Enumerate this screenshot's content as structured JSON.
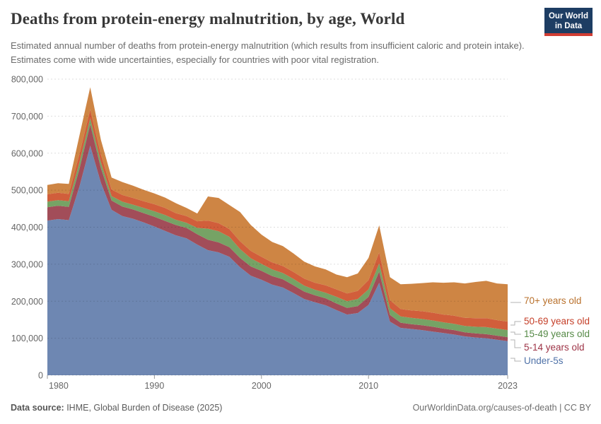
{
  "header": {
    "title": "Deaths from protein-energy malnutrition, by age, World",
    "subtitle": "Estimated annual number of deaths from protein-energy malnutrition (which results from insufficient caloric and protein intake). Estimates come with wide uncertainties, especially for countries with poor vital registration.",
    "logo": {
      "line1": "Our World",
      "line2": "in Data",
      "bg_color": "#1d3d63",
      "bar_color": "#d13d33"
    }
  },
  "footer": {
    "source_label": "Data source:",
    "source_value": " IHME, Global Burden of Disease (2025)",
    "attribution": "OurWorldinData.org/causes-of-death | CC BY"
  },
  "chart_data": {
    "type": "area",
    "stacked": true,
    "title": "Deaths from protein-energy malnutrition, by age, World",
    "xlabel": "",
    "ylabel": "",
    "ylim": [
      0,
      800000
    ],
    "y_ticks": [
      0,
      100000,
      200000,
      300000,
      400000,
      500000,
      600000,
      700000,
      800000
    ],
    "y_tick_labels": [
      "0",
      "100,000",
      "200,000",
      "300,000",
      "400,000",
      "500,000",
      "600,000",
      "700,000",
      "800,000"
    ],
    "x_ticks": [
      1980,
      1990,
      2000,
      2010,
      2023
    ],
    "grid": "dashed-horizontal",
    "legend_position": "right",
    "x": [
      1980,
      1981,
      1982,
      1983,
      1984,
      1985,
      1986,
      1987,
      1988,
      1989,
      1990,
      1991,
      1992,
      1993,
      1994,
      1995,
      1996,
      1997,
      1998,
      1999,
      2000,
      2001,
      2002,
      2003,
      2004,
      2005,
      2006,
      2007,
      2008,
      2009,
      2010,
      2011,
      2012,
      2013,
      2014,
      2015,
      2016,
      2017,
      2018,
      2019,
      2020,
      2021,
      2022,
      2023
    ],
    "series": [
      {
        "name": "Under-5s",
        "color": "#6e87b2",
        "label_color": "#4f72a8",
        "values": [
          418000,
          422000,
          419000,
          510000,
          620000,
          520000,
          447000,
          430000,
          423000,
          413000,
          402000,
          390000,
          378000,
          370000,
          353000,
          338000,
          332000,
          320000,
          292000,
          269000,
          258000,
          245000,
          237000,
          222000,
          206000,
          197000,
          189000,
          176000,
          164000,
          168000,
          190000,
          250000,
          145000,
          128000,
          125000,
          122000,
          118000,
          114000,
          110000,
          105000,
          102000,
          100000,
          96000,
          92000
        ]
      },
      {
        "name": "5-14 years old",
        "color": "#a24d59",
        "label_color": "#9d3346",
        "values": [
          36000,
          36000,
          36000,
          48000,
          58000,
          40000,
          25000,
          26000,
          25000,
          25000,
          26000,
          27000,
          28000,
          28000,
          28000,
          28000,
          27000,
          26000,
          25000,
          25000,
          24000,
          23000,
          22000,
          21000,
          20000,
          19000,
          19000,
          18000,
          18000,
          19000,
          22000,
          30000,
          18000,
          14000,
          13000,
          13000,
          13000,
          12000,
          12000,
          11000,
          11000,
          11000,
          11000,
          11000
        ]
      },
      {
        "name": "15-49 years old",
        "color": "#76a365",
        "label_color": "#568a47",
        "values": [
          15000,
          15000,
          15000,
          17000,
          16000,
          15000,
          12000,
          13000,
          13000,
          14000,
          15000,
          16000,
          14000,
          14000,
          17000,
          30000,
          30000,
          28000,
          24000,
          22000,
          19000,
          18000,
          17000,
          17000,
          16000,
          15000,
          15000,
          18000,
          18000,
          19000,
          20000,
          22000,
          18000,
          17000,
          17000,
          17000,
          17000,
          17000,
          17000,
          17000,
          18000,
          19000,
          19000,
          19000
        ]
      },
      {
        "name": "50-69 years old",
        "color": "#d15e3b",
        "label_color": "#c53f28",
        "values": [
          20000,
          20000,
          20000,
          23000,
          24000,
          21000,
          18000,
          18000,
          18000,
          18000,
          19000,
          19000,
          18000,
          18000,
          18000,
          22000,
          22000,
          21000,
          21000,
          20000,
          19000,
          19000,
          19000,
          19000,
          19000,
          19000,
          20000,
          20000,
          21000,
          22000,
          25000,
          30000,
          22000,
          20000,
          20000,
          21000,
          21000,
          21000,
          22000,
          22000,
          23000,
          24000,
          23000,
          23000
        ]
      },
      {
        "name": "70+ years old",
        "color": "#ce8544",
        "label_color": "#b9712c",
        "values": [
          25000,
          26000,
          27000,
          50000,
          60000,
          40000,
          32000,
          35000,
          33000,
          31000,
          29000,
          28000,
          27000,
          22000,
          21000,
          65000,
          68000,
          65000,
          79000,
          70000,
          60000,
          55000,
          54000,
          50000,
          46000,
          44000,
          43000,
          40000,
          44000,
          47000,
          60000,
          73000,
          62000,
          67000,
          72000,
          76000,
          82000,
          86000,
          90000,
          93000,
          98000,
          101000,
          99000,
          101000
        ]
      }
    ]
  },
  "colors": {
    "gridline": "rgba(0,0,0,0.13)",
    "axis_text": "#666666",
    "tick_mark": "#999999",
    "legend_connector": "#b3b3b3"
  }
}
